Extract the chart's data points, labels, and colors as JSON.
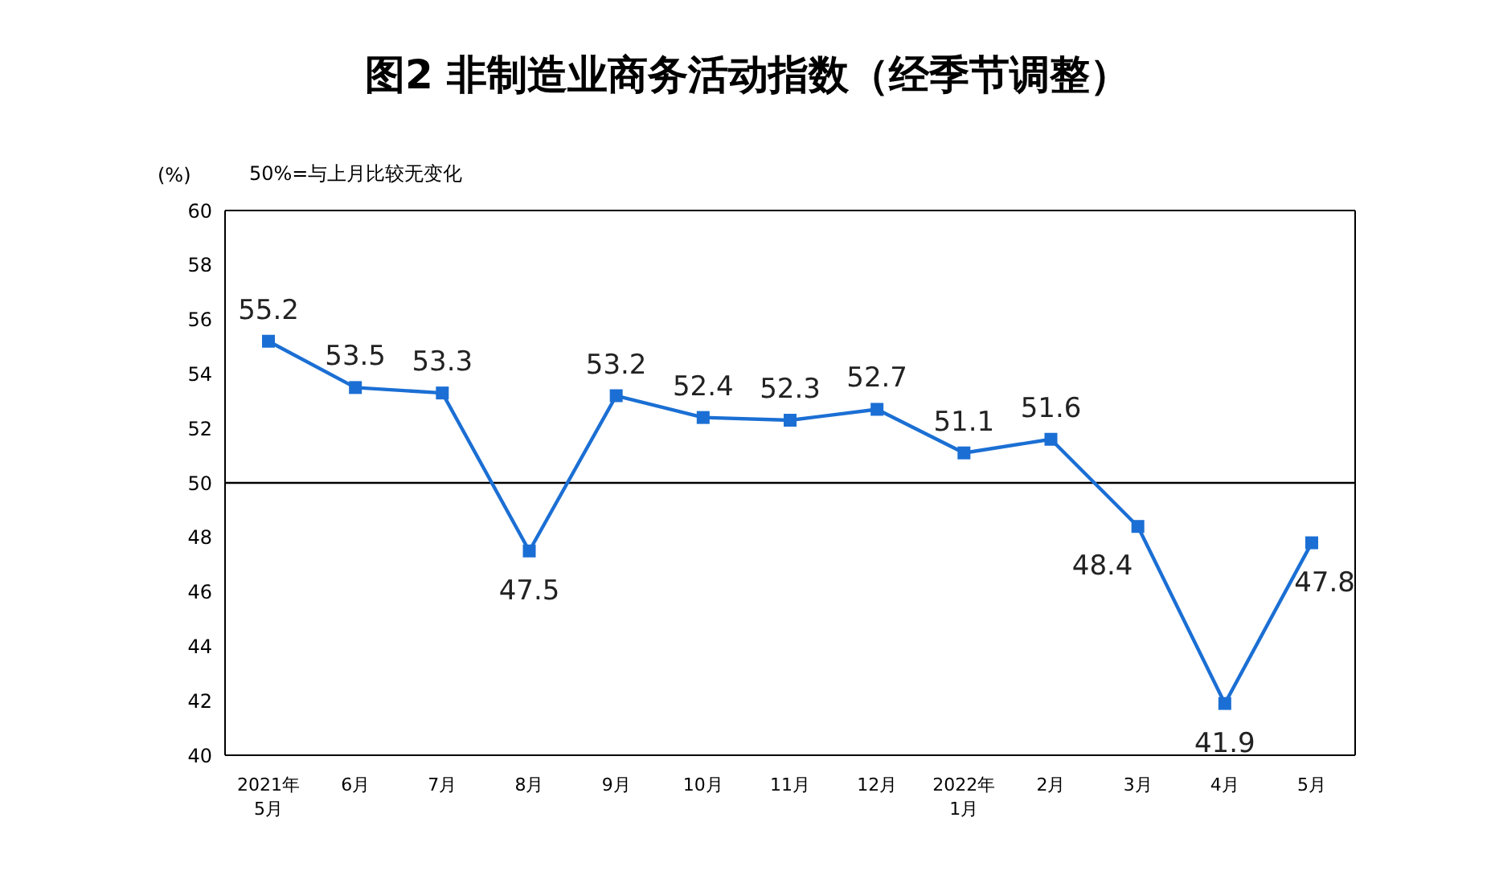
{
  "chart_data": {
    "type": "line",
    "title": "图2  非制造业商务活动指数（经季节调整）",
    "ylabel": "(%)",
    "annotations": [
      "50%=与上月比较无变化"
    ],
    "categories": [
      "2021年\n5月",
      "6月",
      "7月",
      "8月",
      "9月",
      "10月",
      "11月",
      "12月",
      "2022年\n1月",
      "2月",
      "3月",
      "4月",
      "5月"
    ],
    "series": [
      {
        "color": "#1b6fd4",
        "values": [
          55.2,
          53.5,
          53.3,
          47.5,
          53.2,
          52.4,
          52.3,
          52.7,
          51.1,
          51.6,
          48.4,
          41.9,
          47.8
        ]
      }
    ],
    "ylim": [
      40,
      60
    ],
    "yticks": [
      40,
      42,
      44,
      46,
      48,
      50,
      52,
      54,
      56,
      58,
      60
    ],
    "ref_lines": [
      {
        "axis": "y",
        "value": 50,
        "color": "#000000"
      }
    ],
    "marker": "square",
    "line_style": "solid",
    "data_labels": true,
    "grid": false,
    "legend": false
  }
}
